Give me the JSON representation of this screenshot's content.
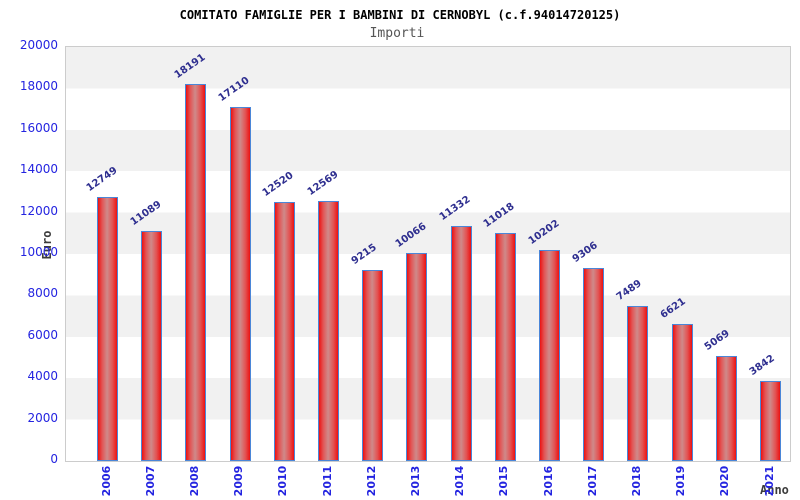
{
  "header": {
    "title": "COMITATO FAMIGLIE PER I BAMBINI DI CERNOBYL (c.f.94014720125)",
    "subtitle": "Importi"
  },
  "chart_data": {
    "type": "bar",
    "title": "COMITATO FAMIGLIE PER I BAMBINI DI CERNOBYL (c.f.94014720125)",
    "subtitle": "Importi",
    "xlabel": "Anno",
    "ylabel": "Euro",
    "categories": [
      "2006",
      "2007",
      "2008",
      "2009",
      "2010",
      "2011",
      "2012",
      "2013",
      "2014",
      "2015",
      "2016",
      "2017",
      "2018",
      "2019",
      "2020",
      "2021"
    ],
    "values": [
      12749,
      11089,
      18191,
      17110,
      12520,
      12569,
      9215,
      10066,
      11332,
      11018,
      10202,
      9306,
      7489,
      6621,
      5069,
      3842
    ],
    "ylim": [
      0,
      20000
    ],
    "yticks": [
      0,
      2000,
      4000,
      6000,
      8000,
      10000,
      12000,
      14000,
      16000,
      18000,
      20000
    ],
    "grid": "horizontal-alternating-bands",
    "legend": "none",
    "value_labels_rotation_deg": -35,
    "x_labels_rotation_deg": -90,
    "colors": {
      "bar_edge_red": "#ec1212",
      "bar_center_light": "#cf8a8a",
      "bar_border_blue": "#4a86d8",
      "tick_label_blue": "#2424e0",
      "value_label_navy": "#2e2e8f",
      "band_gray": "#f1f1f1",
      "plot_border_gray": "#cccccc",
      "title_black": "#000000",
      "subtitle_gray": "#555555",
      "axis_title_gray": "#3c3c3c"
    }
  }
}
